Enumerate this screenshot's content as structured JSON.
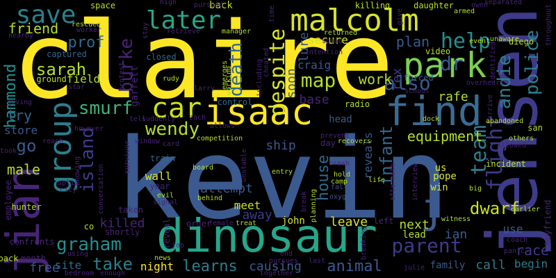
{
  "palette": [
    "#fde725",
    "#b5de2b",
    "#6ece58",
    "#35b779",
    "#1f9e89",
    "#26828e",
    "#31688e",
    "#3e4989",
    "#482878",
    "#440154"
  ],
  "words": [
    {
      "text": "claire",
      "color": "#fde725"
    },
    {
      "text": "kevin",
      "color": "#3b5a8f"
    },
    {
      "text": "jensen",
      "color": "#3e3b8a"
    },
    {
      "text": "isaac",
      "color": "#fde725"
    },
    {
      "text": "dinosaur",
      "color": "#26a68a"
    },
    {
      "text": "find",
      "color": "#3b6c93"
    },
    {
      "text": "malcolm",
      "color": "#d8e32a"
    },
    {
      "text": "jian",
      "color": "#482476"
    },
    {
      "text": "park",
      "color": "#7ad151"
    },
    {
      "text": "car",
      "color": "#cde11d"
    },
    {
      "text": "group",
      "color": "#2c7e8e"
    },
    {
      "text": "save",
      "color": "#26828e"
    },
    {
      "text": "later",
      "color": "#26a68a"
    },
    {
      "text": "wendy",
      "color": "#b5de2b"
    },
    {
      "text": "parent",
      "color": "#3e3b8a"
    },
    {
      "text": "j",
      "color": "#3b5a8f"
    },
    {
      "text": "andie",
      "color": "#2c7e8e"
    },
    {
      "text": "police",
      "color": "#2c7e8e"
    },
    {
      "text": "help",
      "color": "#21908d"
    },
    {
      "text": "dr",
      "color": "#3b5a8f"
    },
    {
      "text": "flight",
      "color": "#3e3b8a"
    },
    {
      "text": "team",
      "color": "#2c7e8e"
    },
    {
      "text": "despite",
      "color": "#d8e32a"
    },
    {
      "text": "death",
      "color": "#31688e"
    },
    {
      "text": "burke",
      "color": "#482476"
    },
    {
      "text": "prof",
      "color": "#31688e"
    },
    {
      "text": "sarah",
      "color": "#b5de2b"
    },
    {
      "text": "hammond",
      "color": "#21908d"
    },
    {
      "text": "smurf",
      "color": "#3eb47a"
    },
    {
      "text": "island",
      "color": "#3e3b8a"
    },
    {
      "text": "infant",
      "color": "#31688e"
    },
    {
      "text": "house",
      "color": "#31688e"
    },
    {
      "text": "map",
      "color": "#b5de2b"
    },
    {
      "text": "also",
      "color": "#3b5a8f"
    },
    {
      "text": "graham",
      "color": "#21908d"
    },
    {
      "text": "take",
      "color": "#2c7e8e"
    },
    {
      "text": "learns",
      "color": "#2c7e8e"
    },
    {
      "text": "animal",
      "color": "#3b5a8f"
    },
    {
      "text": "friend",
      "color": "#b5de2b"
    },
    {
      "text": "male",
      "color": "#b5de2b"
    },
    {
      "text": "plan",
      "color": "#3b5a8f"
    },
    {
      "text": "work",
      "color": "#b5de2b"
    },
    {
      "text": "rafe",
      "color": "#b5de2b"
    },
    {
      "text": "race",
      "color": "#3e3b8a"
    },
    {
      "text": "dwarf",
      "color": "#cde11d"
    },
    {
      "text": "attempt",
      "color": "#3b5a8f"
    },
    {
      "text": "go",
      "color": "#3b5a8f"
    },
    {
      "text": "try",
      "color": "#31688e"
    },
    {
      "text": "equipment",
      "color": "#b5de2b"
    },
    {
      "text": "craig",
      "color": "#3b5a8f"
    },
    {
      "text": "ship",
      "color": "#3b5a8f"
    },
    {
      "text": "wall",
      "color": "#d8e32a"
    },
    {
      "text": "away",
      "color": "#3e3b8a"
    },
    {
      "text": "meet",
      "color": "#cde11d"
    },
    {
      "text": "leave",
      "color": "#d8e32a"
    },
    {
      "text": "next",
      "color": "#b5de2b"
    },
    {
      "text": "night",
      "color": "#fde725"
    },
    {
      "text": "causing",
      "color": "#3b5a8f"
    },
    {
      "text": "free",
      "color": "#3b5a8f"
    },
    {
      "text": "site",
      "color": "#31688e"
    },
    {
      "text": "killed",
      "color": "#482476"
    },
    {
      "text": "reveals",
      "color": "#3b5a8f"
    },
    {
      "text": "secure",
      "color": "#cde11d"
    },
    {
      "text": "field",
      "color": "#b5de2b"
    },
    {
      "text": "store",
      "color": "#3b5a8f"
    },
    {
      "text": "rex",
      "color": "#3e3b8a"
    },
    {
      "text": "base",
      "color": "#482476"
    },
    {
      "text": "lure",
      "color": "#3b5a8f"
    },
    {
      "text": "soon",
      "color": "#3b5a8f"
    },
    {
      "text": "ian",
      "color": "#3b5a8f"
    },
    {
      "text": "use",
      "color": "#3b5a8f"
    },
    {
      "text": "begin",
      "color": "#2c7e8e"
    },
    {
      "text": "family",
      "color": "#3b5a8f"
    },
    {
      "text": "call",
      "color": "#2c7e8e"
    },
    {
      "text": "lead",
      "color": "#b5de2b"
    },
    {
      "text": "back",
      "color": "#b5de2b"
    },
    {
      "text": "head",
      "color": "#3b5a8f"
    },
    {
      "text": "win",
      "color": "#d8e32a"
    },
    {
      "text": "pope",
      "color": "#d8e32a"
    },
    {
      "text": "us",
      "color": "#d8e32a"
    },
    {
      "text": "john",
      "color": "#d8e32a"
    },
    {
      "text": "employee",
      "color": "#482476"
    },
    {
      "text": "captured",
      "color": "#31688e"
    },
    {
      "text": "closed",
      "color": "#31688e"
    },
    {
      "text": "train",
      "color": "#31688e"
    },
    {
      "text": "control",
      "color": "#31688e"
    },
    {
      "text": "radio",
      "color": "#b5de2b"
    },
    {
      "text": "space",
      "color": "#b5de2b"
    },
    {
      "text": "killing",
      "color": "#b5de2b"
    },
    {
      "text": "daughter",
      "color": "#b5de2b"
    },
    {
      "text": "diego",
      "color": "#b5de2b"
    },
    {
      "text": "video",
      "color": "#b5de2b"
    },
    {
      "text": "forced",
      "color": "#3b5a8f"
    },
    {
      "text": "garrett",
      "color": "#482476"
    },
    {
      "text": "year",
      "color": "#482476"
    },
    {
      "text": "day",
      "color": "#482476"
    },
    {
      "text": "left",
      "color": "#482476"
    },
    {
      "text": "order",
      "color": "#482476"
    },
    {
      "text": "shortly",
      "color": "#482476"
    },
    {
      "text": "taken",
      "color": "#482476"
    },
    {
      "text": "ground",
      "color": "#b5de2b"
    },
    {
      "text": "hunter",
      "color": "#b5de2b"
    },
    {
      "text": "co",
      "color": "#b5de2b"
    },
    {
      "text": "confronts",
      "color": "#482476"
    },
    {
      "text": "pack",
      "color": "#b5de2b"
    },
    {
      "text": "month",
      "color": "#482476"
    },
    {
      "text": "using",
      "color": "#482476"
    },
    {
      "text": "bedroom",
      "color": "#482476"
    },
    {
      "text": "enough",
      "color": "#482476"
    },
    {
      "text": "reveal",
      "color": "#482476"
    },
    {
      "text": "job",
      "color": "#482476"
    },
    {
      "text": "female",
      "color": "#482476"
    },
    {
      "text": "treat",
      "color": "#b5de2b"
    },
    {
      "text": "news",
      "color": "#b5de2b"
    },
    {
      "text": "end",
      "color": "#482476"
    },
    {
      "text": "pursues",
      "color": "#482476"
    },
    {
      "text": "together",
      "color": "#482476"
    },
    {
      "text": "last",
      "color": "#482476"
    },
    {
      "text": "breaking",
      "color": "#482476"
    },
    {
      "text": "julie",
      "color": "#482476"
    },
    {
      "text": "witness",
      "color": "#b5de2b"
    },
    {
      "text": "coach",
      "color": "#482476"
    },
    {
      "text": "panic",
      "color": "#482476"
    },
    {
      "text": "boyfriend",
      "color": "#482476"
    },
    {
      "text": "earlier",
      "color": "#b5de2b"
    },
    {
      "text": "big",
      "color": "#b5de2b"
    },
    {
      "text": "oxygen",
      "color": "#3b5a8f"
    },
    {
      "text": "planning",
      "color": "#b5de2b"
    },
    {
      "text": "fall",
      "color": "#3b5a8f"
    },
    {
      "text": "crash",
      "color": "#482476"
    },
    {
      "text": "hold",
      "color": "#b5de2b"
    },
    {
      "text": "camp",
      "color": "#b5de2b"
    },
    {
      "text": "life",
      "color": "#b5de2b"
    },
    {
      "text": "aftermath",
      "color": "#482476"
    },
    {
      "text": "interview",
      "color": "#482476"
    },
    {
      "text": "incident",
      "color": "#b5de2b"
    },
    {
      "text": "allowed",
      "color": "#482476"
    },
    {
      "text": "others",
      "color": "#b5de2b"
    },
    {
      "text": "abandoned",
      "color": "#b5de2b"
    },
    {
      "text": "san",
      "color": "#b5de2b"
    },
    {
      "text": "dock",
      "color": "#b5de2b"
    },
    {
      "text": "school",
      "color": "#482476"
    },
    {
      "text": "overhears",
      "color": "#482476"
    },
    {
      "text": "arrive",
      "color": "#482476"
    },
    {
      "text": "identified",
      "color": "#482476"
    },
    {
      "text": "unaware",
      "color": "#b5de2b"
    },
    {
      "text": "event",
      "color": "#b5de2b"
    },
    {
      "text": "armed",
      "color": "#b5de2b"
    },
    {
      "text": "owen",
      "color": "#482476"
    },
    {
      "text": "separated",
      "color": "#482476"
    },
    {
      "text": "throughout",
      "color": "#482476"
    },
    {
      "text": "give",
      "color": "#482476"
    },
    {
      "text": "time",
      "color": "#482476"
    },
    {
      "text": "returned",
      "color": "#b5de2b"
    },
    {
      "text": "squad",
      "color": "#482476"
    },
    {
      "text": "intention",
      "color": "#482476"
    },
    {
      "text": "high",
      "color": "#482476"
    },
    {
      "text": "pursued",
      "color": "#482476"
    },
    {
      "text": "stay",
      "color": "#482476"
    },
    {
      "text": "retrieve",
      "color": "#482476"
    },
    {
      "text": "manager",
      "color": "#b5de2b"
    },
    {
      "text": "worker",
      "color": "#482476"
    },
    {
      "text": "rescued",
      "color": "#b5de2b"
    },
    {
      "text": "nearby",
      "color": "#482476"
    },
    {
      "text": "star",
      "color": "#482476"
    },
    {
      "text": "giving",
      "color": "#482476"
    },
    {
      "text": "protest",
      "color": "#482476"
    },
    {
      "text": "rudy",
      "color": "#b5de2b"
    },
    {
      "text": "larry",
      "color": "#482476"
    },
    {
      "text": "emerges",
      "color": "#b5de2b"
    },
    {
      "text": "working",
      "color": "#b5de2b"
    },
    {
      "text": "including",
      "color": "#482476"
    },
    {
      "text": "cheated",
      "color": "#482476"
    },
    {
      "text": "tell",
      "color": "#482476"
    },
    {
      "text": "suddenly",
      "color": "#482476"
    },
    {
      "text": "zach",
      "color": "#482476"
    },
    {
      "text": "allows",
      "color": "#482476"
    },
    {
      "text": "however",
      "color": "#482476"
    },
    {
      "text": "reach",
      "color": "#482476"
    },
    {
      "text": "took",
      "color": "#482476"
    },
    {
      "text": "window",
      "color": "#482476"
    },
    {
      "text": "survivor",
      "color": "#482476"
    },
    {
      "text": "card",
      "color": "#482476"
    },
    {
      "text": "competition",
      "color": "#b5de2b"
    },
    {
      "text": "prevent",
      "color": "#482476"
    },
    {
      "text": "recovers",
      "color": "#b5de2b"
    },
    {
      "text": "unstable",
      "color": "#482476"
    },
    {
      "text": "board",
      "color": "#b5de2b"
    },
    {
      "text": "entry",
      "color": "#b5de2b"
    },
    {
      "text": "knowing",
      "color": "#482476"
    },
    {
      "text": "split",
      "color": "#482476"
    },
    {
      "text": "city",
      "color": "#482476"
    },
    {
      "text": "conversation",
      "color": "#482476"
    },
    {
      "text": "evil",
      "color": "#b5de2b"
    },
    {
      "text": "signal",
      "color": "#482476"
    },
    {
      "text": "behind",
      "color": "#b5de2b"
    },
    {
      "text": "break",
      "color": "#482476"
    }
  ]
}
